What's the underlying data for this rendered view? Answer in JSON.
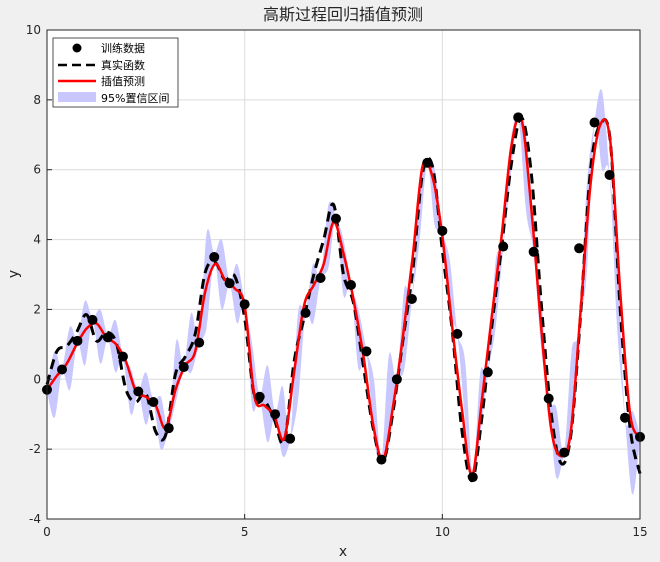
{
  "chart_data": {
    "type": "line",
    "title": "高斯过程回归插值预测",
    "xlabel": "x",
    "ylabel": "y",
    "xlim": [
      0,
      15
    ],
    "ylim": [
      -4,
      10
    ],
    "xticks": [
      "0",
      "5",
      "10",
      "15"
    ],
    "yticks": [
      "-4",
      "-2",
      "0",
      "2",
      "4",
      "6",
      "8",
      "10"
    ],
    "grid": true,
    "legend_position": "top-left",
    "legend": [
      "训练数据",
      "真实函数",
      "插值预测",
      "95%置信区间"
    ],
    "colors": {
      "training_points": "#000000",
      "true_function": "#000000",
      "prediction": "#ff0000",
      "confidence_band": "#c8c8ff"
    },
    "series": [
      {
        "name": "训练数据",
        "style": "markers",
        "x": [
          0.0,
          0.38,
          0.77,
          1.15,
          1.54,
          1.92,
          2.31,
          2.69,
          3.08,
          3.46,
          3.85,
          4.23,
          4.62,
          5.0,
          5.38,
          5.77,
          6.15,
          6.54,
          6.92,
          7.31,
          7.69,
          8.08,
          8.46,
          8.85,
          9.23,
          9.62,
          10.0,
          10.38,
          10.77,
          11.15,
          11.54,
          11.92,
          12.31,
          12.69,
          13.08,
          13.46,
          13.85,
          14.23,
          14.62,
          15.0
        ],
        "y": [
          -0.3,
          0.28,
          1.1,
          1.7,
          1.2,
          0.65,
          -0.35,
          -0.65,
          -1.4,
          0.35,
          1.05,
          3.5,
          2.75,
          2.15,
          -0.5,
          -1.0,
          -1.7,
          1.9,
          2.9,
          4.6,
          2.7,
          0.8,
          -2.3,
          0.0,
          2.3,
          6.2,
          4.25,
          1.3,
          -2.8,
          0.2,
          3.8,
          7.5,
          3.65,
          -0.55,
          -2.1,
          3.75,
          7.35,
          5.85,
          -1.1,
          -1.65
        ]
      },
      {
        "name": "真实函数",
        "style": "dashed",
        "x": [
          0.0,
          0.25,
          0.5,
          0.75,
          1.0,
          1.25,
          1.5,
          1.75,
          2.0,
          2.25,
          2.5,
          2.75,
          3.0,
          3.25,
          3.5,
          3.75,
          4.0,
          4.25,
          4.5,
          4.75,
          5.0,
          5.25,
          5.5,
          5.75,
          6.0,
          6.25,
          6.5,
          6.75,
          7.0,
          7.25,
          7.5,
          7.75,
          8.0,
          8.25,
          8.5,
          8.75,
          9.0,
          9.25,
          9.5,
          9.75,
          10.0,
          10.25,
          10.5,
          10.75,
          11.0,
          11.25,
          11.5,
          11.75,
          12.0,
          12.25,
          12.5,
          12.75,
          13.0,
          13.25,
          13.5,
          13.75,
          14.0,
          14.25,
          14.5,
          14.75,
          15.0
        ],
        "y": [
          -0.15,
          0.8,
          0.95,
          1.35,
          1.85,
          1.1,
          1.35,
          1.05,
          -0.3,
          -0.65,
          -0.4,
          -1.5,
          -1.6,
          0.15,
          0.65,
          1.3,
          3.05,
          3.35,
          2.85,
          2.95,
          1.75,
          -0.5,
          -0.6,
          -1.15,
          -1.8,
          0.5,
          1.75,
          3.0,
          4.0,
          5.0,
          3.0,
          2.2,
          0.4,
          -1.4,
          -2.35,
          -0.95,
          1.1,
          3.1,
          5.9,
          6.1,
          3.7,
          1.4,
          -1.5,
          -2.9,
          -1.1,
          1.5,
          3.8,
          6.2,
          7.5,
          5.9,
          2.2,
          -0.95,
          -2.4,
          -1.6,
          1.9,
          6.0,
          7.3,
          6.8,
          2.0,
          -1.4,
          -2.7
        ]
      },
      {
        "name": "插值预测",
        "style": "solid",
        "x": [
          0.0,
          0.25,
          0.5,
          0.75,
          1.0,
          1.25,
          1.5,
          1.75,
          2.0,
          2.25,
          2.5,
          2.75,
          3.0,
          3.25,
          3.5,
          3.75,
          4.0,
          4.25,
          4.5,
          4.75,
          5.0,
          5.25,
          5.5,
          5.75,
          6.0,
          6.25,
          6.5,
          6.75,
          7.0,
          7.25,
          7.5,
          7.75,
          8.0,
          8.25,
          8.5,
          8.75,
          9.0,
          9.25,
          9.5,
          9.75,
          10.0,
          10.25,
          10.5,
          10.75,
          11.0,
          11.25,
          11.5,
          11.75,
          12.0,
          12.25,
          12.5,
          12.75,
          13.0,
          13.25,
          13.5,
          13.75,
          14.0,
          14.25,
          14.5,
          14.75,
          15.0
        ],
        "y": [
          -0.3,
          0.1,
          0.45,
          1.0,
          1.45,
          1.6,
          1.2,
          1.0,
          0.5,
          -0.35,
          -0.5,
          -0.75,
          -1.4,
          -0.3,
          0.4,
          0.8,
          2.5,
          3.3,
          2.85,
          2.6,
          2.1,
          -0.5,
          -0.75,
          -1.05,
          -1.7,
          0.2,
          2.1,
          2.7,
          3.3,
          4.5,
          3.6,
          2.3,
          0.7,
          -1.3,
          -2.3,
          -0.8,
          1.2,
          3.5,
          6.1,
          5.8,
          4.1,
          1.5,
          -0.9,
          -2.75,
          -0.6,
          1.8,
          4.1,
          6.7,
          7.45,
          4.9,
          1.5,
          -1.4,
          -2.2,
          -1.5,
          2.0,
          5.6,
          7.3,
          6.8,
          2.5,
          -1.0,
          -1.65
        ]
      },
      {
        "name": "95%置信区间",
        "style": "band",
        "x": [
          0.0,
          0.19,
          0.38,
          0.58,
          0.77,
          0.96,
          1.15,
          1.35,
          1.54,
          1.73,
          1.92,
          2.12,
          2.31,
          2.5,
          2.69,
          2.88,
          3.08,
          3.27,
          3.46,
          3.65,
          3.85,
          4.04,
          4.23,
          4.42,
          4.62,
          4.81,
          5.0,
          5.19,
          5.38,
          5.58,
          5.77,
          5.96,
          6.15,
          6.35,
          6.54,
          6.73,
          6.92,
          7.12,
          7.31,
          7.5,
          7.69,
          7.88,
          8.08,
          8.27,
          8.46,
          8.65,
          8.85,
          9.04,
          9.23,
          9.42,
          9.62,
          9.81,
          10.0,
          10.19,
          10.38,
          10.58,
          10.77,
          10.96,
          11.15,
          11.35,
          11.54,
          11.73,
          11.92,
          12.12,
          12.31,
          12.5,
          12.69,
          12.88,
          13.08,
          13.27,
          13.46,
          13.65,
          13.85,
          14.04,
          14.23,
          14.42,
          14.62,
          14.81,
          15.0
        ],
        "lower": [
          -0.35,
          -1.1,
          0.2,
          -0.3,
          1.05,
          0.4,
          1.65,
          0.45,
          1.15,
          0.2,
          0.6,
          -1.0,
          -0.4,
          -1.3,
          -0.7,
          -2.0,
          -1.45,
          -0.6,
          0.3,
          0.2,
          1.0,
          1.5,
          3.4,
          2.0,
          2.7,
          1.6,
          2.1,
          -0.8,
          -0.55,
          -1.8,
          -1.05,
          -2.2,
          -1.75,
          -0.6,
          1.85,
          1.6,
          2.85,
          3.2,
          4.55,
          2.4,
          2.65,
          0.3,
          0.75,
          -1.7,
          -2.35,
          -1.4,
          -0.05,
          0.3,
          2.25,
          3.9,
          6.15,
          4.4,
          4.2,
          1.9,
          1.25,
          -1.2,
          -2.85,
          -1.6,
          0.15,
          1.5,
          3.75,
          5.8,
          7.45,
          4.8,
          3.6,
          0.9,
          -0.6,
          -2.8,
          -2.15,
          -1.6,
          1.4,
          3.0,
          7.3,
          6.0,
          5.8,
          1.5,
          -1.15,
          -3.3,
          -1.7
        ],
        "upper": [
          -0.25,
          0.8,
          0.35,
          1.5,
          1.15,
          2.25,
          1.75,
          2.0,
          1.25,
          1.7,
          0.7,
          0.3,
          -0.3,
          0.2,
          -0.6,
          -0.5,
          -1.35,
          1.1,
          0.4,
          1.9,
          1.1,
          4.2,
          3.6,
          4.0,
          2.8,
          3.3,
          2.2,
          1.0,
          -0.45,
          0.4,
          -0.95,
          -0.2,
          -1.65,
          1.9,
          1.95,
          3.3,
          2.95,
          5.0,
          4.65,
          4.0,
          2.75,
          2.0,
          0.85,
          0.0,
          -2.25,
          0.7,
          0.05,
          2.6,
          2.35,
          5.5,
          6.25,
          6.0,
          4.3,
          3.4,
          1.35,
          0.5,
          -2.75,
          0.2,
          0.25,
          3.4,
          3.85,
          6.8,
          7.55,
          7.0,
          3.7,
          2.3,
          -0.5,
          -0.8,
          -2.05,
          0.8,
          1.5,
          5.5,
          7.4,
          8.25,
          5.9,
          3.7,
          -1.05,
          -0.9,
          -1.6
        ]
      }
    ]
  }
}
